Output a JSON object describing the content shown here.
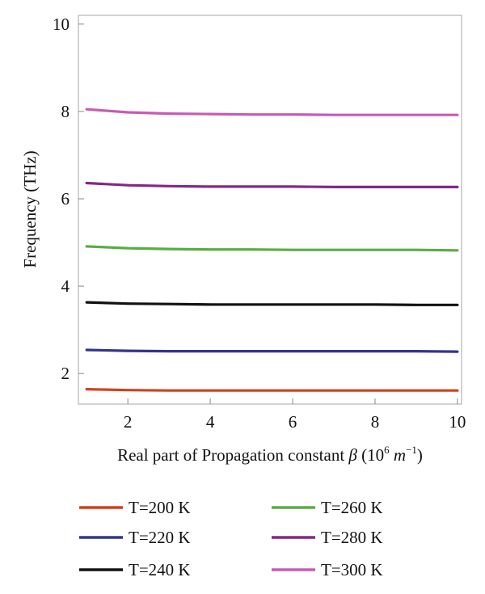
{
  "chart_data": {
    "type": "line",
    "title": "",
    "xlabel": "Real part of Propagation constant ",
    "xlabel_symbol": "β",
    "xlabel_unit_open": " (10",
    "xlabel_unit_exp": "6",
    "xlabel_unit_m": " m",
    "xlabel_unit_m_exp": "−1",
    "xlabel_unit_close": ")",
    "ylabel": "Frequency (THz)",
    "xlim": [
      0.8,
      10.1
    ],
    "ylim": [
      1.3,
      10.2
    ],
    "xticks": [
      2,
      4,
      6,
      8,
      10
    ],
    "yticks": [
      2,
      4,
      6,
      8,
      10
    ],
    "grid": false,
    "legend_position": "bottom",
    "x": [
      1,
      2,
      3,
      4,
      5,
      6,
      7,
      8,
      9,
      10
    ],
    "series": [
      {
        "name": "T=200 K",
        "color": "#d2401c",
        "values": [
          1.64,
          1.62,
          1.61,
          1.61,
          1.61,
          1.61,
          1.61,
          1.61,
          1.61,
          1.61
        ]
      },
      {
        "name": "T=220 K",
        "color": "#34338f",
        "values": [
          2.54,
          2.52,
          2.51,
          2.51,
          2.51,
          2.51,
          2.51,
          2.51,
          2.51,
          2.5
        ]
      },
      {
        "name": "T=240 K",
        "color": "#111111",
        "values": [
          3.63,
          3.6,
          3.59,
          3.58,
          3.58,
          3.58,
          3.58,
          3.58,
          3.57,
          3.57
        ]
      },
      {
        "name": "T=260 K",
        "color": "#59ad42",
        "values": [
          4.91,
          4.87,
          4.85,
          4.84,
          4.84,
          4.83,
          4.83,
          4.83,
          4.83,
          4.82
        ]
      },
      {
        "name": "T=280 K",
        "color": "#832886",
        "values": [
          6.36,
          6.31,
          6.29,
          6.28,
          6.28,
          6.28,
          6.27,
          6.27,
          6.27,
          6.27
        ]
      },
      {
        "name": "T=300 K",
        "color": "#c75bb4",
        "values": [
          8.05,
          7.98,
          7.95,
          7.94,
          7.93,
          7.93,
          7.92,
          7.92,
          7.92,
          7.92
        ]
      }
    ]
  }
}
